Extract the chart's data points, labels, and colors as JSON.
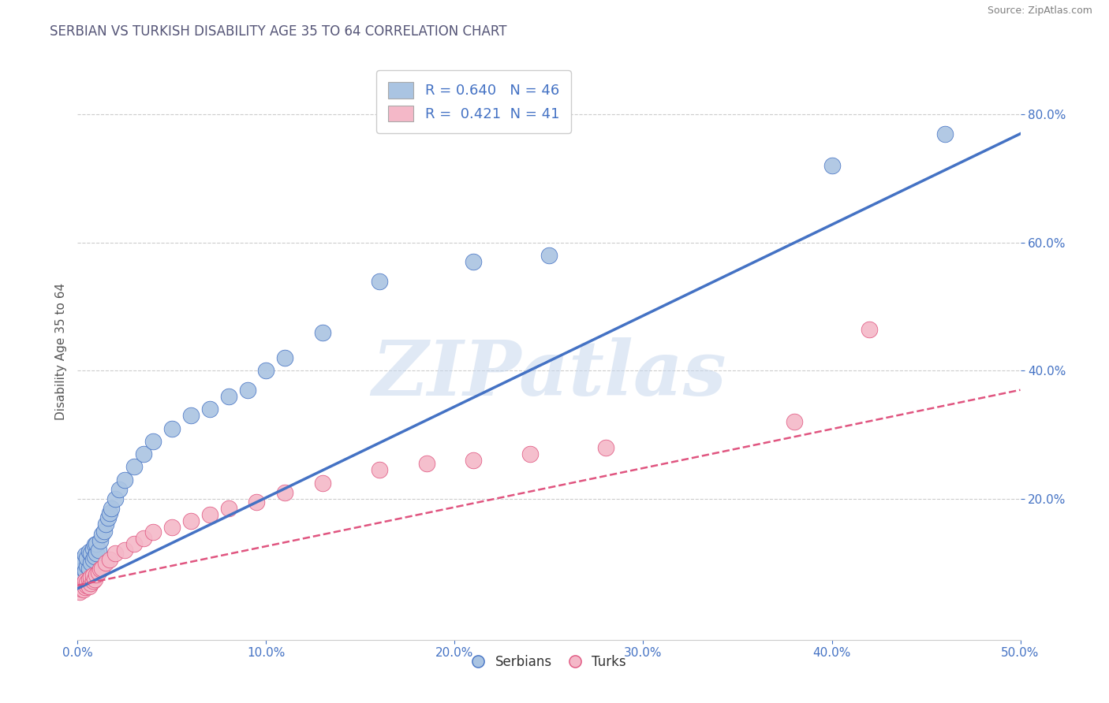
{
  "title": "SERBIAN VS TURKISH DISABILITY AGE 35 TO 64 CORRELATION CHART",
  "source": "Source: ZipAtlas.com",
  "ylabel": "Disability Age 35 to 64",
  "xmin": 0.0,
  "xmax": 0.5,
  "ymin": -0.02,
  "ymax": 0.88,
  "xtick_vals": [
    0.0,
    0.1,
    0.2,
    0.3,
    0.4,
    0.5
  ],
  "ytick_vals": [
    0.2,
    0.4,
    0.6,
    0.8
  ],
  "serbian_color": "#aac4e2",
  "turkish_color": "#f4b8c8",
  "serbian_line_color": "#4472c4",
  "turkish_line_color": "#e05580",
  "legend_label1": "R = 0.640   N = 46",
  "legend_label2": "R =  0.421  N = 41",
  "title_color": "#4472c4",
  "source_color": "#808080",
  "legend_text_color": "#4472c4",
  "ytick_color": "#4472c4",
  "xtick_color": "#4472c4",
  "watermark": "ZIPatlas",
  "grid_color": "#cccccc",
  "background_color": "#ffffff",
  "serbian_x": [
    0.001,
    0.002,
    0.002,
    0.003,
    0.003,
    0.004,
    0.004,
    0.005,
    0.005,
    0.006,
    0.006,
    0.007,
    0.007,
    0.008,
    0.008,
    0.009,
    0.009,
    0.01,
    0.01,
    0.011,
    0.012,
    0.013,
    0.014,
    0.015,
    0.016,
    0.017,
    0.018,
    0.02,
    0.022,
    0.025,
    0.03,
    0.035,
    0.04,
    0.05,
    0.06,
    0.07,
    0.08,
    0.09,
    0.1,
    0.11,
    0.13,
    0.16,
    0.21,
    0.25,
    0.4,
    0.46
  ],
  "serbian_y": [
    0.085,
    0.095,
    0.105,
    0.09,
    0.1,
    0.088,
    0.112,
    0.095,
    0.108,
    0.092,
    0.118,
    0.1,
    0.115,
    0.105,
    0.122,
    0.11,
    0.128,
    0.115,
    0.13,
    0.12,
    0.135,
    0.145,
    0.15,
    0.16,
    0.17,
    0.178,
    0.185,
    0.2,
    0.215,
    0.23,
    0.25,
    0.27,
    0.29,
    0.31,
    0.33,
    0.34,
    0.36,
    0.37,
    0.4,
    0.42,
    0.46,
    0.54,
    0.57,
    0.58,
    0.72,
    0.77
  ],
  "turkish_x": [
    0.001,
    0.002,
    0.002,
    0.003,
    0.003,
    0.004,
    0.004,
    0.005,
    0.005,
    0.006,
    0.006,
    0.007,
    0.007,
    0.008,
    0.008,
    0.009,
    0.01,
    0.011,
    0.012,
    0.013,
    0.015,
    0.017,
    0.02,
    0.025,
    0.03,
    0.035,
    0.04,
    0.05,
    0.06,
    0.07,
    0.08,
    0.095,
    0.11,
    0.13,
    0.16,
    0.185,
    0.21,
    0.24,
    0.28,
    0.38,
    0.42
  ],
  "turkish_y": [
    0.055,
    0.06,
    0.065,
    0.058,
    0.068,
    0.062,
    0.072,
    0.065,
    0.07,
    0.063,
    0.075,
    0.068,
    0.078,
    0.072,
    0.08,
    0.075,
    0.082,
    0.085,
    0.09,
    0.092,
    0.1,
    0.105,
    0.115,
    0.12,
    0.13,
    0.138,
    0.148,
    0.155,
    0.165,
    0.175,
    0.185,
    0.195,
    0.21,
    0.225,
    0.245,
    0.255,
    0.26,
    0.27,
    0.28,
    0.32,
    0.465
  ],
  "serbian_trend_x": [
    0.0,
    0.5
  ],
  "serbian_trend_y": [
    0.06,
    0.77
  ],
  "turkish_trend_x": [
    0.0,
    0.5
  ],
  "turkish_trend_y": [
    0.065,
    0.37
  ]
}
